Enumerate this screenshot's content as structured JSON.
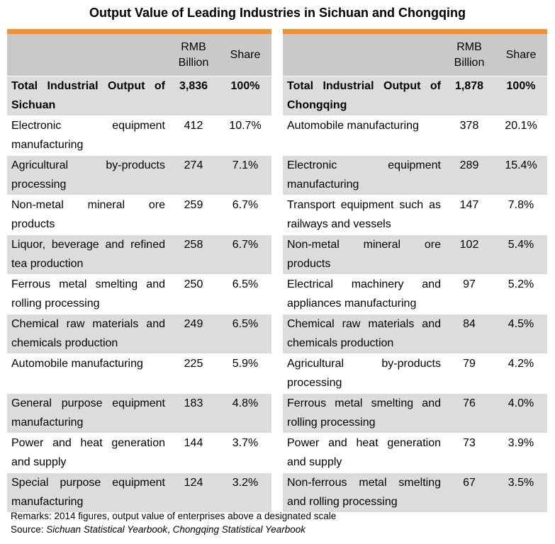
{
  "title": "Output Value of Leading Industries in Sichuan and Chongqing",
  "colors": {
    "accent": "#f7902b",
    "header_bg": "#c9c9c9",
    "row_bg": "#dcdcdc"
  },
  "columns": {
    "rmb": "RMB Billion",
    "share": "Share"
  },
  "sichuan": {
    "total": {
      "label": "Total Industrial Output of Sichuan",
      "rmb": "3,836",
      "share": "100%"
    },
    "rows": [
      {
        "label": "Electronic equipment manufacturing",
        "rmb": "412",
        "share": "10.7%"
      },
      {
        "label": "Agricultural by-products processing",
        "rmb": "274",
        "share": "7.1%"
      },
      {
        "label": "Non-metal mineral ore products",
        "rmb": "259",
        "share": "6.7%"
      },
      {
        "label": "Liquor, beverage and refined tea production",
        "rmb": "258",
        "share": "6.7%"
      },
      {
        "label": "Ferrous metal smelting and rolling processing",
        "rmb": "250",
        "share": "6.5%"
      },
      {
        "label": "Chemical raw materials and chemicals production",
        "rmb": "249",
        "share": "6.5%"
      },
      {
        "label": "Automobile manufacturing",
        "rmb": "225",
        "share": "5.9%"
      },
      {
        "label": "General purpose equipment manufacturing",
        "rmb": "183",
        "share": "4.8%"
      },
      {
        "label": "Power and heat generation and supply",
        "rmb": "144",
        "share": "3.7%"
      },
      {
        "label": "Special purpose equipment manufacturing",
        "rmb": "124",
        "share": "3.2%"
      }
    ]
  },
  "chongqing": {
    "total": {
      "label": "Total Industrial Output of Chongqing",
      "rmb": "1,878",
      "share": "100%"
    },
    "rows": [
      {
        "label": "Automobile manufacturing",
        "rmb": "378",
        "share": "20.1%"
      },
      {
        "label": "Electronic equipment manufacturing",
        "rmb": "289",
        "share": "15.4%"
      },
      {
        "label": "Transport equipment such as railways and vessels",
        "rmb": "147",
        "share": "7.8%"
      },
      {
        "label": "Non-metal mineral ore products",
        "rmb": "102",
        "share": "5.4%"
      },
      {
        "label": "Electrical machinery and appliances manufacturing",
        "rmb": "97",
        "share": "5.2%"
      },
      {
        "label": "Chemical raw materials and chemicals production",
        "rmb": "84",
        "share": "4.5%"
      },
      {
        "label": "Agricultural by-products processing",
        "rmb": "79",
        "share": "4.2%"
      },
      {
        "label": "Ferrous metal smelting and rolling processing",
        "rmb": "76",
        "share": "4.0%"
      },
      {
        "label": "Power and heat generation and supply",
        "rmb": "73",
        "share": "3.9%"
      },
      {
        "label": "Non-ferrous metal smelting and rolling processing",
        "rmb": "67",
        "share": "3.5%"
      }
    ]
  },
  "remarks": "Remarks: 2014 figures, output value of enterprises above a designated scale",
  "source": {
    "prefix": "Source: ",
    "sichuan": "Sichuan Statistical Yearbook",
    "sep": ", ",
    "chongqing": "Chongqing Statistical Yearbook"
  }
}
